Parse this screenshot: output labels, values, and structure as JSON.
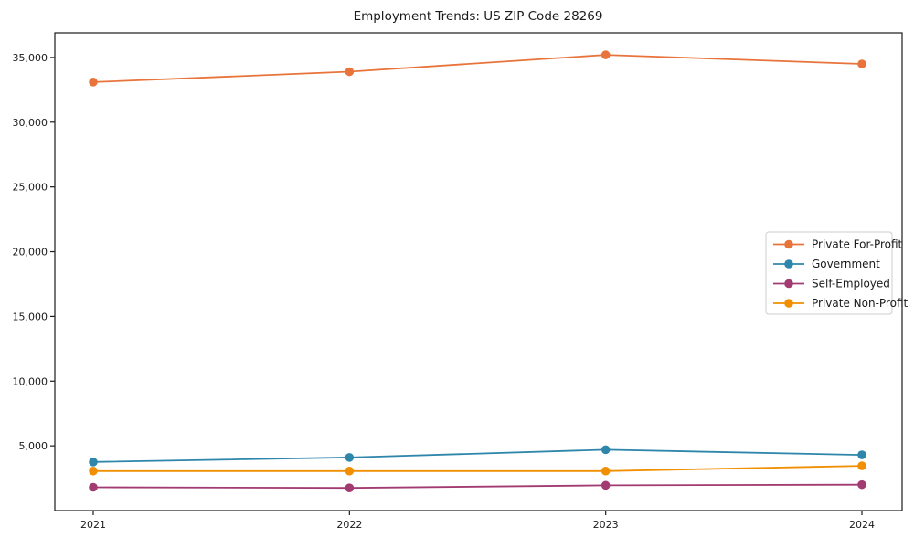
{
  "figure": {
    "background": "#ffffff",
    "axes_edge_color": "#1a1a1a",
    "text_color": "#1a1a1a"
  },
  "chart_data": {
    "type": "line",
    "title": "Employment Trends: US ZIP Code 28269",
    "xlabel": "",
    "ylabel": "",
    "x_tick_labels": [
      "2021",
      "2022",
      "2023",
      "2024"
    ],
    "yticks": [
      5000,
      10000,
      15000,
      20000,
      25000,
      30000,
      35000
    ],
    "ylim": [
      0,
      36900
    ],
    "grid": false,
    "marker": "circle",
    "legend_position": "center right",
    "legend_border_color": "#cccccc",
    "legend_background": "#ffffff",
    "series": [
      {
        "name": "Private For-Profit",
        "color": "#E8743B",
        "values": [
          33100,
          33900,
          35200,
          34500
        ]
      },
      {
        "name": "Government",
        "color": "#2E86AB",
        "values": [
          3750,
          4100,
          4700,
          4300
        ]
      },
      {
        "name": "Self-Employed",
        "color": "#A23B72",
        "values": [
          1800,
          1750,
          1950,
          2000
        ]
      },
      {
        "name": "Private Non-Profit",
        "color": "#F18F01",
        "values": [
          3050,
          3050,
          3050,
          3450
        ]
      }
    ]
  }
}
